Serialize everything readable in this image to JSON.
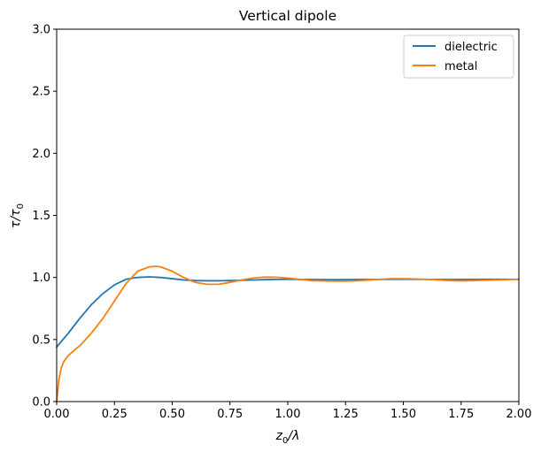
{
  "chart_data": {
    "type": "line",
    "title": "Vertical dipole",
    "xlabel": {
      "base": "z",
      "sub": "0",
      "rest": "/λ"
    },
    "ylabel": {
      "base": "τ/τ",
      "sub": "0"
    },
    "xlim": [
      0,
      2
    ],
    "ylim": [
      0,
      3
    ],
    "xticks": [
      0.0,
      0.25,
      0.5,
      0.75,
      1.0,
      1.25,
      1.5,
      1.75,
      2.0
    ],
    "xtick_labels": [
      "0.00",
      "0.25",
      "0.50",
      "0.75",
      "1.00",
      "1.25",
      "1.50",
      "1.75",
      "2.00"
    ],
    "yticks": [
      0.0,
      0.5,
      1.0,
      1.5,
      2.0,
      2.5,
      3.0
    ],
    "ytick_labels": [
      "0.0",
      "0.5",
      "1.0",
      "1.5",
      "2.0",
      "2.5",
      "3.0"
    ],
    "grid": false,
    "legend": "top-right",
    "series": [
      {
        "name": "dielectric",
        "color": "#1f77b4",
        "x": [
          0.0,
          0.05,
          0.1,
          0.15,
          0.2,
          0.25,
          0.3,
          0.35,
          0.4,
          0.45,
          0.5,
          0.55,
          0.6,
          0.65,
          0.7,
          0.75,
          0.8,
          0.85,
          0.9,
          0.95,
          1.0,
          1.1,
          1.2,
          1.3,
          1.4,
          1.5,
          1.6,
          1.7,
          1.8,
          1.9,
          2.0
        ],
        "y": [
          0.44,
          0.55,
          0.67,
          0.78,
          0.87,
          0.94,
          0.985,
          1.0,
          1.005,
          1.0,
          0.99,
          0.98,
          0.975,
          0.973,
          0.973,
          0.975,
          0.977,
          0.98,
          0.982,
          0.984,
          0.985,
          0.983,
          0.982,
          0.983,
          0.984,
          0.985,
          0.984,
          0.983,
          0.984,
          0.985,
          0.985
        ]
      },
      {
        "name": "metal",
        "color": "#ff7f0e",
        "x": [
          0.0,
          0.01,
          0.02,
          0.03,
          0.05,
          0.08,
          0.1,
          0.15,
          0.2,
          0.25,
          0.3,
          0.35,
          0.4,
          0.43,
          0.45,
          0.5,
          0.55,
          0.6,
          0.65,
          0.7,
          0.75,
          0.8,
          0.85,
          0.9,
          0.95,
          1.0,
          1.05,
          1.1,
          1.2,
          1.25,
          1.3,
          1.4,
          1.45,
          1.5,
          1.6,
          1.7,
          1.75,
          1.8,
          1.9,
          2.0
        ],
        "y": [
          0.0,
          0.18,
          0.27,
          0.32,
          0.37,
          0.42,
          0.45,
          0.55,
          0.67,
          0.81,
          0.95,
          1.05,
          1.085,
          1.09,
          1.085,
          1.05,
          1.0,
          0.96,
          0.945,
          0.945,
          0.96,
          0.98,
          0.995,
          1.003,
          1.002,
          0.995,
          0.985,
          0.975,
          0.97,
          0.97,
          0.973,
          0.985,
          0.99,
          0.99,
          0.985,
          0.975,
          0.973,
          0.975,
          0.98,
          0.985
        ]
      }
    ]
  }
}
